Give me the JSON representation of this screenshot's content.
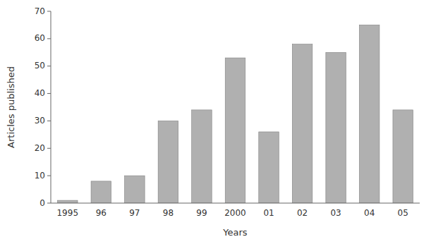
{
  "chart_data": {
    "type": "bar",
    "categories": [
      "1995",
      "96",
      "97",
      "98",
      "99",
      "2000",
      "01",
      "02",
      "03",
      "04",
      "05"
    ],
    "values": [
      1,
      8,
      10,
      30,
      34,
      53,
      26,
      58,
      55,
      65,
      34
    ],
    "color": "#b0b0b0",
    "xlabel": "Years",
    "ylabel": "Articles published",
    "ylim": [
      0,
      70
    ],
    "yticks": [
      0,
      10,
      20,
      30,
      40,
      50,
      60,
      70
    ]
  }
}
